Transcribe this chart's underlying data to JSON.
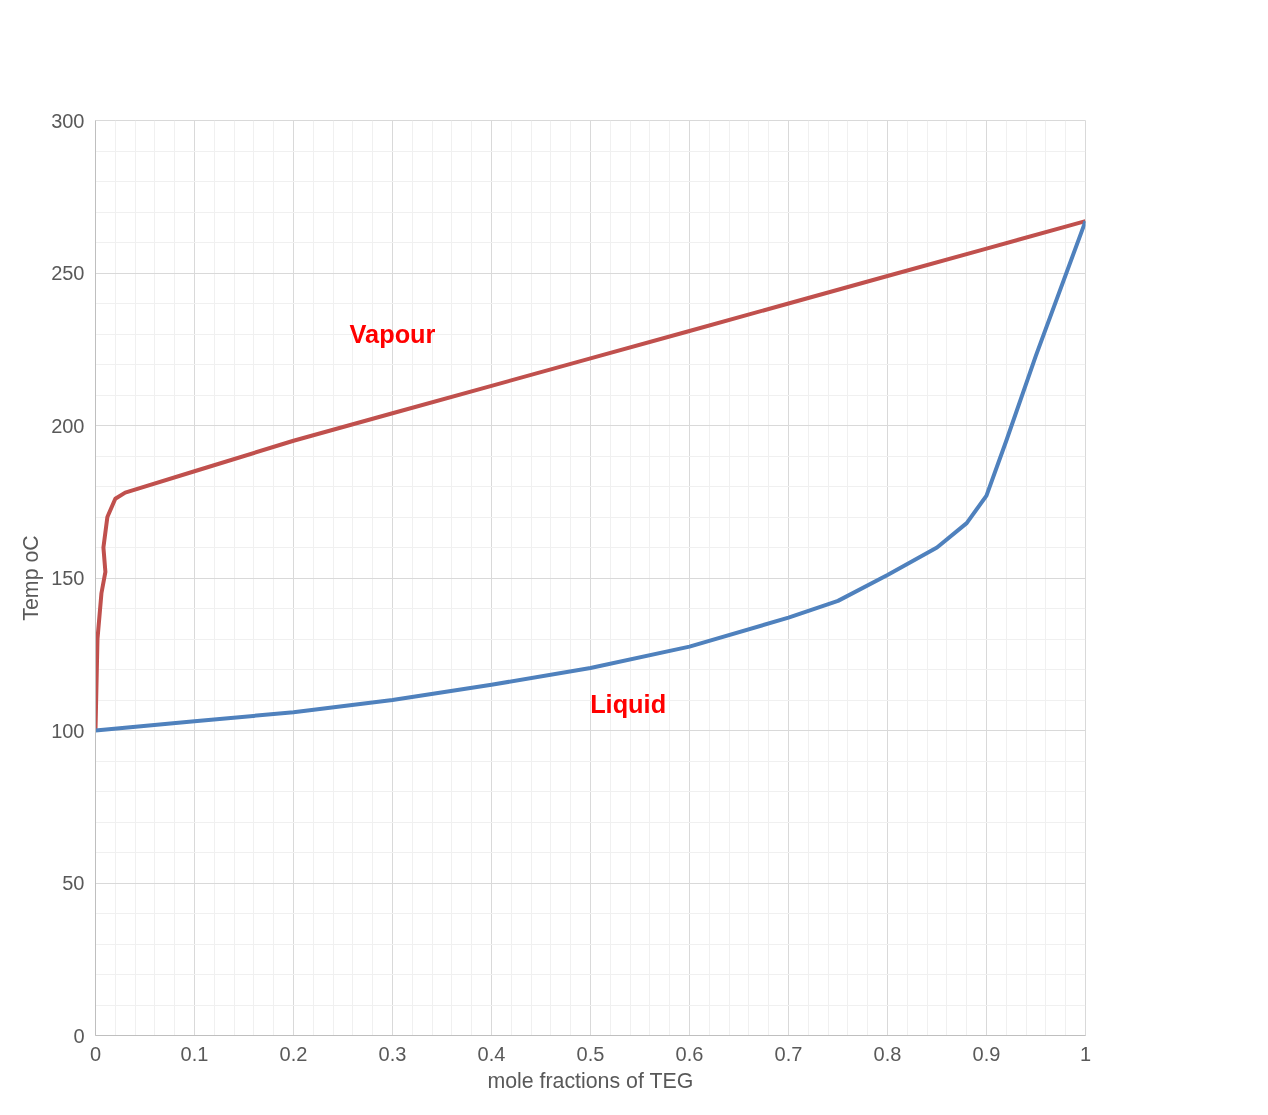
{
  "chart_data": {
    "type": "line",
    "xlabel": "mole fractions of TEG",
    "ylabel": "Temp oC",
    "xlim": [
      0,
      1
    ],
    "ylim": [
      0,
      300
    ],
    "xticks": [
      0,
      0.1,
      0.2,
      0.3,
      0.4,
      0.5,
      0.6,
      0.7,
      0.8,
      0.9,
      1
    ],
    "yticks": [
      0,
      50,
      100,
      150,
      200,
      250,
      300
    ],
    "grid": true,
    "marker": "none",
    "line_style": "solid",
    "series": [
      {
        "color": "#c0504d",
        "x": [
          0,
          0.002,
          0.006,
          0.01,
          0.008,
          0.012,
          0.02,
          0.03,
          0.1,
          0.2,
          0.3,
          0.4,
          0.5,
          0.6,
          0.7,
          0.8,
          0.9,
          1
        ],
        "values": [
          100,
          130,
          145,
          152,
          160,
          170,
          176,
          178,
          185,
          195,
          204,
          213,
          222,
          231,
          240,
          249,
          258,
          267
        ]
      },
      {
        "color": "#4f81bd",
        "x": [
          0,
          0.1,
          0.2,
          0.3,
          0.4,
          0.5,
          0.6,
          0.7,
          0.75,
          0.8,
          0.85,
          0.88,
          0.9,
          0.92,
          0.95,
          1
        ],
        "values": [
          100,
          103,
          106,
          110,
          115,
          120.5,
          127.5,
          137,
          142.5,
          151,
          160,
          168,
          177,
          195,
          223,
          267
        ]
      }
    ],
    "annotations": [
      "Vapour",
      "Liquid"
    ]
  }
}
